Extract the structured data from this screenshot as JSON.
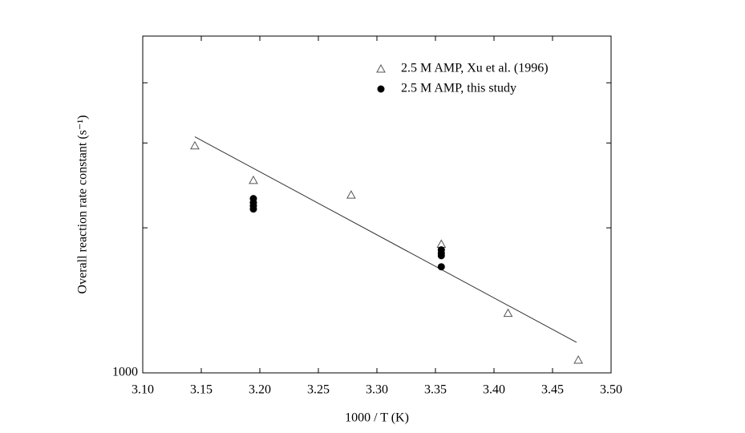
{
  "chart_data": {
    "type": "scatter",
    "x_label": "1000 / T (K)",
    "y_label": "Overall reaction rate constant (s⁻¹)",
    "xlim": [
      3.1,
      3.5
    ],
    "xticks": [
      {
        "value": 3.1,
        "label": "3.10"
      },
      {
        "value": 3.15,
        "label": "3.15"
      },
      {
        "value": 3.2,
        "label": "3.20"
      },
      {
        "value": 3.25,
        "label": "3.25"
      },
      {
        "value": 3.3,
        "label": "3.30"
      },
      {
        "value": 3.35,
        "label": "3.35"
      },
      {
        "value": 3.4,
        "label": "3.40"
      },
      {
        "value": 3.45,
        "label": "3.45"
      },
      {
        "value": 3.5,
        "label": "3.50"
      }
    ],
    "ylim": [
      1000,
      5000
    ],
    "yticks": [
      1000
    ],
    "yminorticks": [
      2000,
      3000,
      4000
    ],
    "ylog": true,
    "grid": false,
    "legend": "top-right",
    "series": [
      {
        "name": "2.5 M AMP, Xu et al. (1996)",
        "marker": "triangle",
        "color": "#555555",
        "x": [
          3.1445,
          3.1945,
          3.278,
          3.355,
          3.412,
          3.472
        ],
        "values": [
          2960,
          2510,
          2340,
          1850,
          1330,
          1063
        ]
      },
      {
        "name": "2.5 M AMP, this study",
        "marker": "circle",
        "color": "#000000",
        "x": [
          3.1945,
          3.1945,
          3.1945,
          3.1945,
          3.355,
          3.355,
          3.355,
          3.355
        ],
        "values": [
          2300,
          2256,
          2222,
          2188,
          1800,
          1771,
          1751,
          1660
        ]
      }
    ],
    "fit_line": {
      "color": "#333333",
      "x": [
        3.1445,
        3.4705
      ],
      "values": [
        3090,
        1157
      ]
    }
  }
}
